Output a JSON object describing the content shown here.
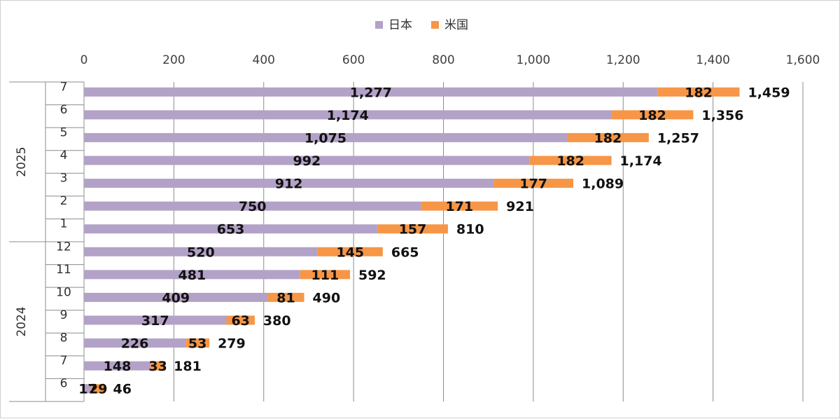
{
  "chart_data": {
    "type": "bar",
    "orientation": "horizontal",
    "stacked": true,
    "legend_position": "top",
    "grid": true,
    "xlim": [
      0,
      1600
    ],
    "x_ticks": [
      "0",
      "200",
      "400",
      "600",
      "800",
      "1,000",
      "1,200",
      "1,400",
      "1,600"
    ],
    "groups": [
      {
        "label": "2025",
        "months": [
          "7",
          "6",
          "5",
          "4",
          "3",
          "2",
          "1"
        ]
      },
      {
        "label": "2024",
        "months": [
          "12",
          "11",
          "10",
          "9",
          "8",
          "7",
          "6"
        ]
      }
    ],
    "categories": [
      "2025-7",
      "2025-6",
      "2025-5",
      "2025-4",
      "2025-3",
      "2025-2",
      "2025-1",
      "2024-12",
      "2024-11",
      "2024-10",
      "2024-9",
      "2024-8",
      "2024-7",
      "2024-6"
    ],
    "series": [
      {
        "name": "日本",
        "color": "#b3a2c7",
        "values": [
          1277,
          1174,
          1075,
          992,
          912,
          750,
          653,
          520,
          481,
          409,
          317,
          226,
          148,
          17
        ],
        "labels": [
          "1,277",
          "1,174",
          "1,075",
          "992",
          "912",
          "750",
          "653",
          "520",
          "481",
          "409",
          "317",
          "226",
          "148",
          "17"
        ]
      },
      {
        "name": "米国",
        "color": "#f79646",
        "values": [
          182,
          182,
          182,
          182,
          177,
          171,
          157,
          145,
          111,
          81,
          63,
          53,
          33,
          29
        ],
        "labels": [
          "182",
          "182",
          "182",
          "182",
          "177",
          "171",
          "157",
          "145",
          "111",
          "81",
          "63",
          "53",
          "33",
          "29"
        ]
      }
    ],
    "totals": [
      1459,
      1356,
      1257,
      1174,
      1089,
      921,
      810,
      665,
      592,
      490,
      380,
      279,
      181,
      46
    ],
    "total_labels": [
      "1,459",
      "1,356",
      "1,257",
      "1,174",
      "1,089",
      "921",
      "810",
      "665",
      "592",
      "490",
      "380",
      "279",
      "181",
      "46"
    ]
  }
}
